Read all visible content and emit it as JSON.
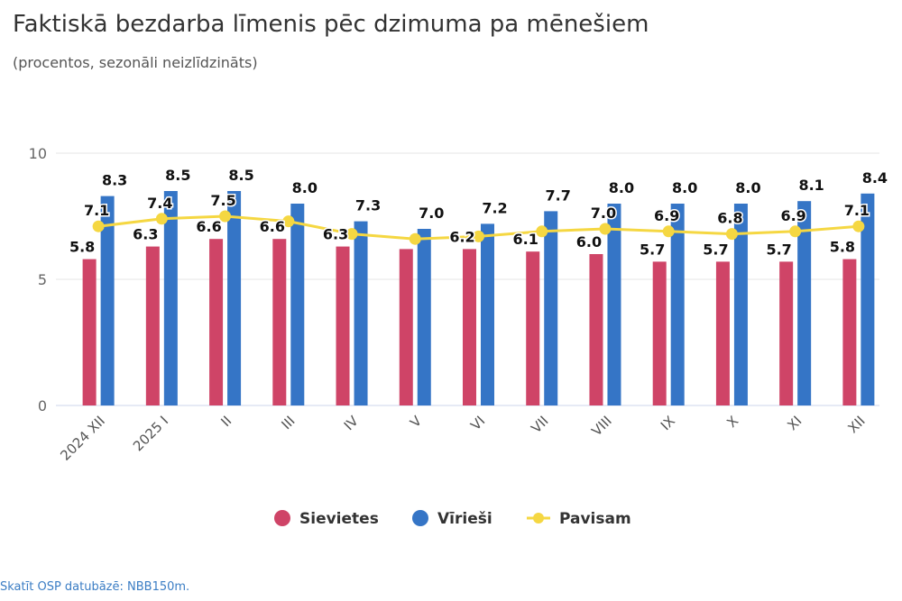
{
  "header": {
    "title": "Faktiskā bezdarba līmenis pēc dzimuma pa mēnešiem",
    "subtitle": "(procentos, sezonāli neizlīdzināts)"
  },
  "footer": {
    "link_text": "Skatīt OSP datubāzē: NBB150m."
  },
  "chart_data": {
    "type": "bar",
    "title": "Faktiskā bezdarba līmenis pēc dzimuma pa mēnešiem",
    "subtitle": "(procentos, sezonāli neizlīdzināts)",
    "xlabel": "",
    "ylabel": "",
    "ylim": [
      0,
      10
    ],
    "yticks": [
      0,
      5,
      10
    ],
    "grid": true,
    "legend_position": "bottom-center",
    "categories": [
      "2024 XII",
      "2025 I",
      "II",
      "III",
      "IV",
      "V",
      "VI",
      "VII",
      "VIII",
      "IX",
      "X",
      "XI",
      "XII"
    ],
    "series": [
      {
        "name": "Sievietes",
        "type": "bar",
        "color": "#cf4467",
        "values": [
          5.8,
          6.3,
          6.6,
          6.6,
          6.3,
          6.2,
          6.2,
          6.1,
          6.0,
          5.7,
          5.7,
          5.7,
          5.8
        ],
        "labels_shown": [
          true,
          true,
          true,
          true,
          true,
          false,
          true,
          true,
          true,
          true,
          true,
          true,
          true
        ]
      },
      {
        "name": "Vīrieši",
        "type": "bar",
        "color": "#3575c6",
        "values": [
          8.3,
          8.5,
          8.5,
          8.0,
          7.3,
          7.0,
          7.2,
          7.7,
          8.0,
          8.0,
          8.0,
          8.1,
          8.4
        ],
        "labels_shown": [
          true,
          true,
          true,
          true,
          true,
          true,
          true,
          true,
          true,
          true,
          true,
          true,
          true
        ]
      },
      {
        "name": "Pavisam",
        "type": "line",
        "color": "#f5d742",
        "values": [
          7.1,
          7.4,
          7.5,
          7.3,
          6.8,
          6.6,
          6.7,
          6.9,
          7.0,
          6.9,
          6.8,
          6.9,
          7.1
        ],
        "labels_shown": [
          true,
          true,
          true,
          false,
          false,
          false,
          false,
          false,
          true,
          true,
          true,
          true,
          true
        ]
      }
    ]
  }
}
